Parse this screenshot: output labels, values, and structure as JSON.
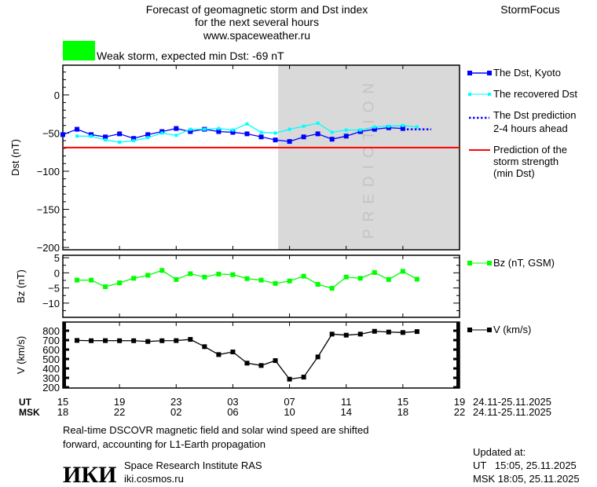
{
  "header": {
    "title_line1": "Forecast of geomagnetic storm and Dst index",
    "title_line2": "for the next several hours",
    "site": "www.spaceweather.ru",
    "brand": "StormFocus",
    "storm_status": "Weak storm, expected min Dst: -69 nT",
    "storm_color": "#00ff00"
  },
  "legend": {
    "kyoto": "The Dst, Kyoto",
    "recovered": "The recovered Dst",
    "prediction_1": "The Dst prediction",
    "prediction_2": "2-4 hours ahead",
    "strength_1": "Prediction of the",
    "strength_2": "storm strength",
    "strength_3": "(min Dst)",
    "bz": "Bz (nT, GSM)",
    "v": "V (km/s)"
  },
  "axis": {
    "ut_label": "UT",
    "msk_label": "MSK",
    "ut_ticks": [
      "15",
      "19",
      "23",
      "03",
      "07",
      "11",
      "15",
      "19"
    ],
    "msk_ticks": [
      "18",
      "22",
      "02",
      "06",
      "10",
      "14",
      "18",
      "22"
    ],
    "date_range_ut": "24.11-25.11.2025",
    "date_range_msk": "24.11-25.11.2025"
  },
  "footer": {
    "note_line1": "Real-time DSCOVR magnetic field and solar wind speed are shifted",
    "note_line2": "forward, accounting for L1-Earth propagation",
    "institute": "Space Research Institute RAS",
    "institute_url": "iki.cosmos.ru",
    "logo_text": "ИКИ",
    "updated_label": "Updated at:",
    "updated_ut": "UT   15:05, 25.11.2025",
    "updated_msk": "MSK 18:05, 25.11.2025"
  },
  "chart_data": {
    "type": "line",
    "title": "Forecast of geomagnetic storm and Dst index",
    "x_unit": "hours since 15 UT 24.11.2025",
    "xlim": [
      0,
      28
    ],
    "prediction_band_label": "PREDICTION",
    "prediction_band_start": 15.2,
    "panels": [
      {
        "name": "dst",
        "ylabel": "Dst (nT)",
        "ylim": [
          -203,
          39
        ],
        "yticks": [
          0,
          -50,
          -100,
          -150,
          -200
        ],
        "series": [
          {
            "name": "The Dst, Kyoto",
            "color": "#0000ff",
            "x0": 0,
            "values": [
              -52,
              -45,
              -52,
              -55,
              -51,
              -57,
              -52,
              -48,
              -44,
              -48,
              -45,
              -48,
              -49,
              -51,
              -55,
              -59,
              -61,
              -55,
              -51,
              -58,
              -54,
              -48,
              -45,
              -43,
              -44
            ]
          },
          {
            "name": "The recovered Dst",
            "color": "#00ffff",
            "x0": 1,
            "values": [
              -54,
              -54,
              -59,
              -62,
              -60,
              -56,
              -50,
              -53,
              -45,
              -45,
              -44,
              -46,
              -38,
              -49,
              -50,
              -45,
              -41,
              -37,
              -49,
              -46,
              -46,
              -42,
              -41,
              -40,
              -42
            ]
          },
          {
            "name": "The Dst prediction 2-4 hours ahead",
            "color": "#0000ff",
            "x0": 24,
            "style": "dotted",
            "values": [
              -45,
              -45,
              -45
            ]
          },
          {
            "name": "Prediction of the storm strength (min Dst)",
            "color": "#ff0000",
            "constant": -69
          }
        ]
      },
      {
        "name": "bz",
        "ylabel": "Bz (nT)",
        "ylim": [
          -14.7,
          5.8
        ],
        "yticks": [
          5,
          0,
          -5,
          -10
        ],
        "series": [
          {
            "name": "Bz (nT, GSM)",
            "color": "#00ff00",
            "x0": 1,
            "values": [
              -2.4,
              -2.4,
              -4.6,
              -3.3,
              -1.8,
              -0.8,
              0.8,
              -2.2,
              -0.3,
              -1.4,
              -0.4,
              -0.6,
              -1.9,
              -2.4,
              -3.5,
              -2.7,
              -1.1,
              -3.8,
              -5.1,
              -1.4,
              -1.8,
              0.1,
              -2.2,
              0.5,
              -2.1
            ]
          }
        ]
      },
      {
        "name": "v",
        "ylabel": "V (km/s)",
        "ylim": [
          192,
          892
        ],
        "yticks": [
          800,
          700,
          600,
          500,
          400,
          300,
          200
        ],
        "series": [
          {
            "name": "V (km/s)",
            "color": "#000000",
            "x0": 1,
            "values": [
              697,
              694,
              695,
              694,
              694,
              686,
              694,
              695,
              708,
              631,
              547,
              575,
              456,
              431,
              483,
              286,
              308,
              522,
              764,
              753,
              764,
              794,
              786,
              781,
              791
            ]
          }
        ]
      }
    ]
  }
}
